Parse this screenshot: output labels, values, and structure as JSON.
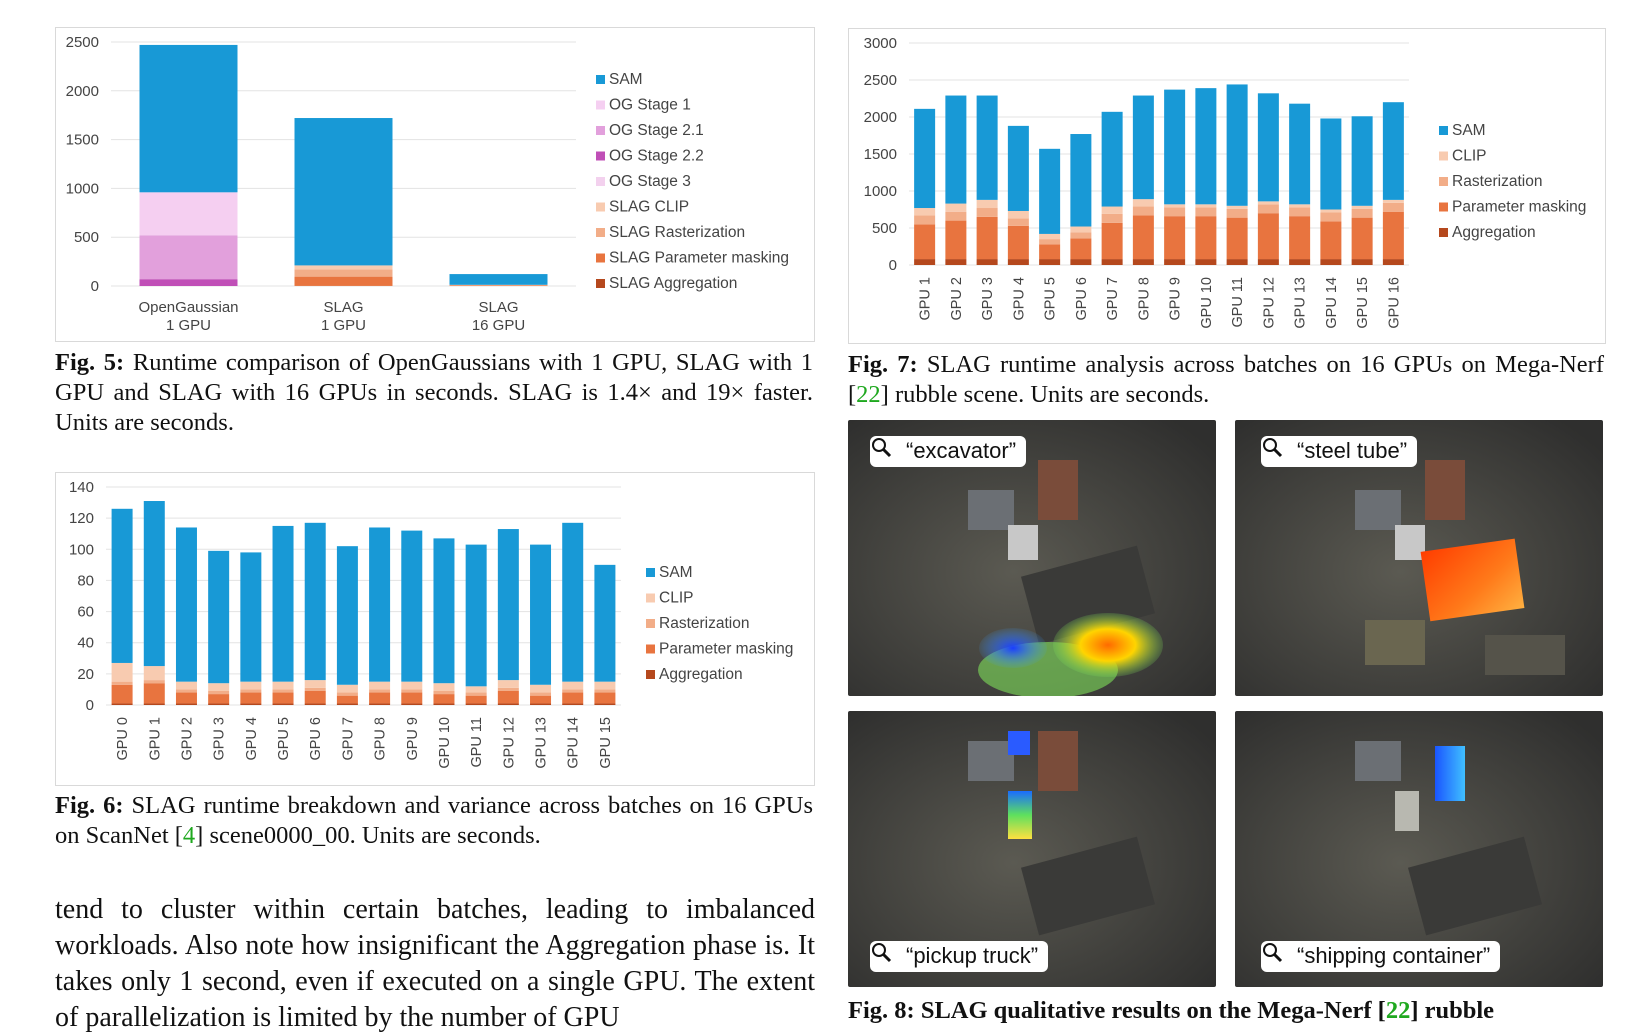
{
  "fig5": {
    "caption_label": "Fig. 5:",
    "caption_text": " Runtime comparison of OpenGaussians with 1 GPU, SLAG with 1 GPU and SLAG with 16 GPUs in seconds. SLAG is 1.4× and 19× faster. Units are seconds."
  },
  "fig6": {
    "caption_label": "Fig. 6:",
    "caption_pre": " SLAG runtime breakdown and variance across batches on 16 GPUs on ScanNet [",
    "caption_ref": "4",
    "caption_post": "] scene0000_00. Units are seconds."
  },
  "fig7": {
    "caption_label": "Fig. 7:",
    "caption_pre": " SLAG runtime analysis across batches on 16 GPUs on Mega-Nerf [",
    "caption_ref": "22",
    "caption_post": "] rubble scene. Units are seconds."
  },
  "fig8": {
    "caption_label": "Fig. 8:",
    "caption_pre": " SLAG qualitative results on the Mega-Nerf [",
    "caption_ref": "22",
    "caption_post": "] rubble",
    "queries": [
      "“excavator”",
      "“steel tube”",
      "“pickup truck”",
      "“shipping container”"
    ],
    "icon": "magnifier-icon"
  },
  "body_text": "tend to cluster within certain batches, leading to imbalanced workloads. Also note how insignificant the Aggregation phase is. It takes only 1 second, even if executed on a single GPU. The extent of parallelization is limited by the number of GPU",
  "chart_data": [
    {
      "id": "fig5",
      "type": "bar",
      "stacked": true,
      "categories": [
        "OpenGaussian\n1 GPU",
        "SLAG\n1 GPU",
        "SLAG\n16 GPU"
      ],
      "ylim": [
        0,
        2500
      ],
      "yticks": [
        0,
        500,
        1000,
        1500,
        2000,
        2500
      ],
      "grid": true,
      "legend_position": "right",
      "series": [
        {
          "name": "SLAG Aggregation",
          "color": "#b5481d",
          "values": [
            0,
            1,
            0.1
          ]
        },
        {
          "name": "SLAG Parameter masking",
          "color": "#e8743f",
          "values": [
            0,
            95,
            5
          ]
        },
        {
          "name": "SLAG Rasterization",
          "color": "#f2ad88",
          "values": [
            0,
            75,
            4
          ]
        },
        {
          "name": "SLAG CLIP",
          "color": "#f8cbb0",
          "values": [
            0,
            40,
            3
          ]
        },
        {
          "name": "OG Stage 3",
          "color": "#f3d1ee",
          "values": [
            0,
            0,
            0
          ]
        },
        {
          "name": "OG Stage 2.2",
          "color": "#c04fb7",
          "values": [
            70,
            0,
            0
          ]
        },
        {
          "name": "OG Stage 2.1",
          "color": "#e2a0dc",
          "values": [
            450,
            0,
            0
          ]
        },
        {
          "name": "OG Stage 1",
          "color": "#f5cff1",
          "values": [
            440,
            0,
            0
          ]
        },
        {
          "name": "SAM",
          "color": "#1899d6",
          "values": [
            1510,
            1510,
            110
          ]
        }
      ]
    },
    {
      "id": "fig6",
      "type": "bar",
      "stacked": true,
      "categories": [
        "GPU 0",
        "GPU 1",
        "GPU 2",
        "GPU 3",
        "GPU 4",
        "GPU 5",
        "GPU 6",
        "GPU 7",
        "GPU 8",
        "GPU 9",
        "GPU 10",
        "GPU 11",
        "GPU 12",
        "GPU 13",
        "GPU 14",
        "GPU 15"
      ],
      "ylim": [
        0,
        140
      ],
      "yticks": [
        0,
        20,
        40,
        60,
        80,
        100,
        120,
        140
      ],
      "grid": true,
      "legend_position": "right",
      "series": [
        {
          "name": "Aggregation",
          "color": "#b5481d",
          "values": [
            1,
            1,
            1,
            1,
            1,
            1,
            1,
            1,
            1,
            1,
            1,
            1,
            1,
            1,
            1,
            1
          ]
        },
        {
          "name": "Parameter masking",
          "color": "#e8743f",
          "values": [
            12,
            13,
            7,
            6,
            7,
            7,
            8,
            5,
            7,
            7,
            6,
            5,
            8,
            5,
            7,
            7
          ]
        },
        {
          "name": "Rasterization",
          "color": "#f2ad88",
          "values": [
            2,
            2,
            2,
            2,
            2,
            2,
            2,
            2,
            2,
            2,
            2,
            2,
            2,
            2,
            2,
            2
          ]
        },
        {
          "name": "CLIP",
          "color": "#f8cbb0",
          "values": [
            12,
            9,
            5,
            5,
            5,
            5,
            5,
            5,
            5,
            5,
            5,
            4,
            5,
            5,
            5,
            5
          ]
        },
        {
          "name": "SAM",
          "color": "#1899d6",
          "values": [
            99,
            106,
            99,
            85,
            83,
            100,
            101,
            89,
            99,
            97,
            93,
            91,
            97,
            90,
            102,
            75
          ]
        }
      ]
    },
    {
      "id": "fig7",
      "type": "bar",
      "stacked": true,
      "categories": [
        "GPU 1",
        "GPU 2",
        "GPU 3",
        "GPU 4",
        "GPU 5",
        "GPU 6",
        "GPU 7",
        "GPU 8",
        "GPU 9",
        "GPU 10",
        "GPU 11",
        "GPU 12",
        "GPU 13",
        "GPU 14",
        "GPU 15",
        "GPU 16"
      ],
      "ylim": [
        0,
        3000
      ],
      "yticks": [
        0,
        500,
        1000,
        1500,
        2000,
        2500,
        3000
      ],
      "grid": true,
      "legend_position": "right",
      "series": [
        {
          "name": "Aggregation",
          "color": "#b5481d",
          "values": [
            80,
            80,
            80,
            80,
            80,
            80,
            80,
            80,
            80,
            80,
            80,
            80,
            80,
            80,
            80,
            80
          ]
        },
        {
          "name": "Parameter masking",
          "color": "#e8743f",
          "values": [
            470,
            520,
            570,
            450,
            200,
            280,
            490,
            590,
            580,
            580,
            560,
            620,
            580,
            510,
            560,
            640
          ]
        },
        {
          "name": "Rasterization",
          "color": "#f2ad88",
          "values": [
            120,
            120,
            120,
            100,
            70,
            80,
            120,
            120,
            120,
            120,
            120,
            120,
            120,
            120,
            120,
            120
          ]
        },
        {
          "name": "CLIP",
          "color": "#f8cbb0",
          "values": [
            100,
            110,
            110,
            100,
            70,
            80,
            100,
            100,
            40,
            40,
            40,
            40,
            40,
            40,
            40,
            40
          ]
        },
        {
          "name": "SAM",
          "color": "#1899d6",
          "values": [
            1340,
            1460,
            1410,
            1150,
            1150,
            1250,
            1280,
            1400,
            1550,
            1570,
            1640,
            1460,
            1360,
            1230,
            1210,
            1320
          ]
        }
      ]
    }
  ]
}
